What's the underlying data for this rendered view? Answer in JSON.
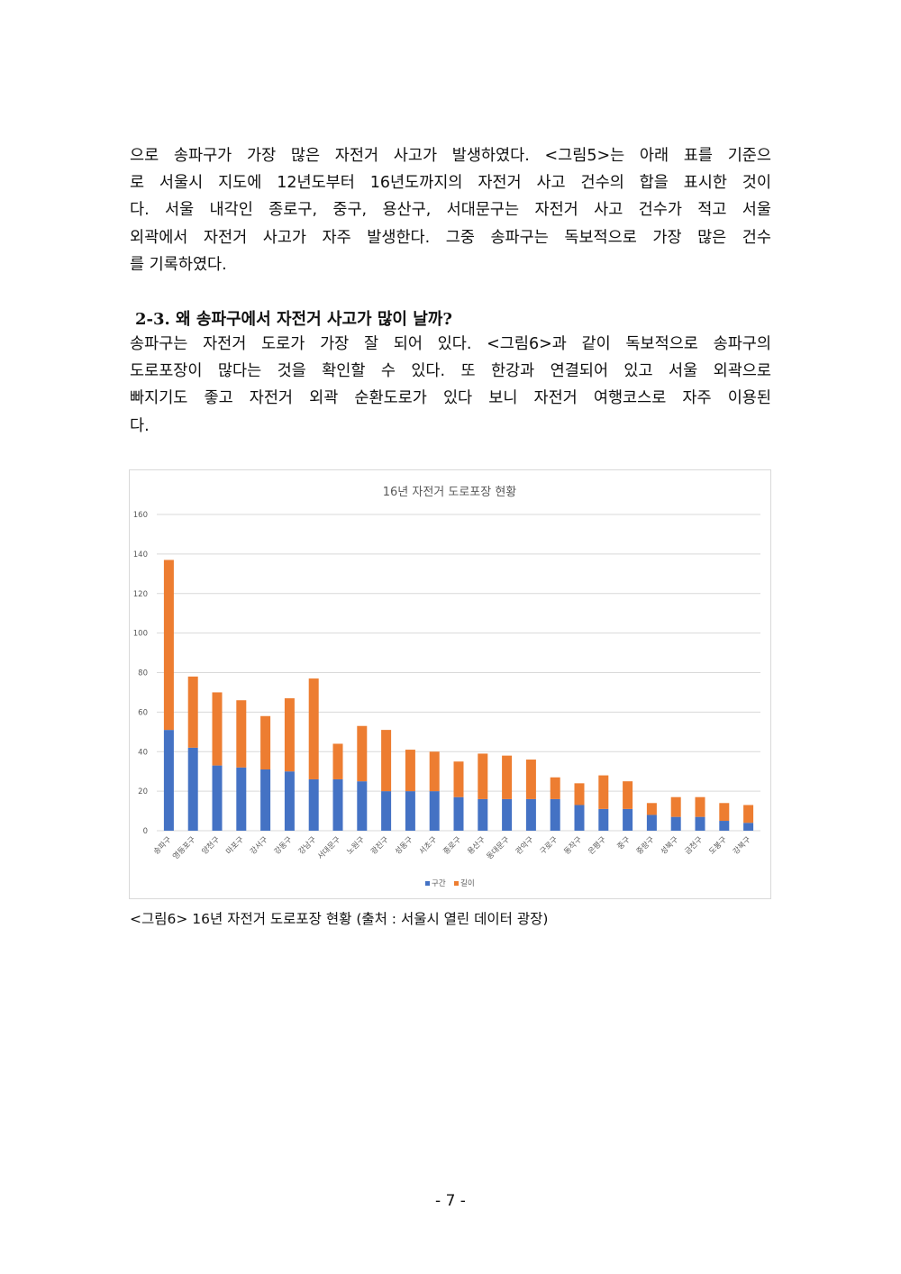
{
  "paragraph1": [
    "으로 송파구가 가장 많은 자전거 사고가 발생하였다. <그림5>는 아래 표를 기준으",
    "로 서울시 지도에 12년도부터 16년도까지의 자전거 사고 건수의 합을 표시한 것이",
    "다. 서울 내각인 종로구, 중구, 용산구, 서대문구는 자전거 사고 건수가 적고 서울",
    "외곽에서 자전거 사고가 자주 발생한다. 그중 송파구는 독보적으로 가장 많은 건수",
    "를 기록하였다."
  ],
  "heading": "2-3. 왜 송파구에서 자전거 사고가 많이 날까?",
  "paragraph2": [
    " 송파구는 자전거 도로가 가장 잘 되어 있다. <그림6>과 같이 독보적으로 송파구의",
    "도로포장이 많다는 것을 확인할 수 있다. 또 한강과 연결되어 있고 서울 외곽으로",
    "빠지기도 좋고 자전거 외곽 순환도로가 있다 보니 자전거 여행코스로 자주 이용된",
    "다."
  ],
  "caption": "<그림6> 16년 자전거 도로포장 현황 (출처 : 서울시 열린 데이터 광장)",
  "page_number": "- 7 -",
  "colors": {
    "series_1": "#4472c4",
    "series_2": "#ed7d31",
    "grid": "#d9d9d9",
    "text": "#595959"
  },
  "chart_data": {
    "type": "bar",
    "stacked": true,
    "title": "16년 자전거 도로포장 현황",
    "xlabel": "",
    "ylabel": "",
    "ylim": [
      0,
      160
    ],
    "yticks": [
      0,
      20,
      40,
      60,
      80,
      100,
      120,
      140,
      160
    ],
    "grid": true,
    "legend_position": "bottom",
    "categories": [
      "송파구",
      "영등포구",
      "양천구",
      "마포구",
      "강서구",
      "강동구",
      "강남구",
      "서대문구",
      "노원구",
      "광진구",
      "성동구",
      "서초구",
      "종로구",
      "용산구",
      "동대문구",
      "관악구",
      "구로구",
      "동작구",
      "은평구",
      "중구",
      "중랑구",
      "성북구",
      "금천구",
      "도봉구",
      "강북구"
    ],
    "series": [
      {
        "name": "구간",
        "values": [
          51,
          42,
          33,
          32,
          31,
          30,
          26,
          26,
          25,
          20,
          20,
          20,
          17,
          16,
          16,
          16,
          16,
          13,
          11,
          11,
          8,
          7,
          7,
          5,
          4
        ]
      },
      {
        "name": "길이",
        "values": [
          86,
          36,
          37,
          34,
          27,
          37,
          51,
          18,
          28,
          31,
          21,
          20,
          18,
          23,
          22,
          20,
          11,
          11,
          17,
          14,
          6,
          10,
          10,
          9,
          9
        ]
      }
    ]
  }
}
